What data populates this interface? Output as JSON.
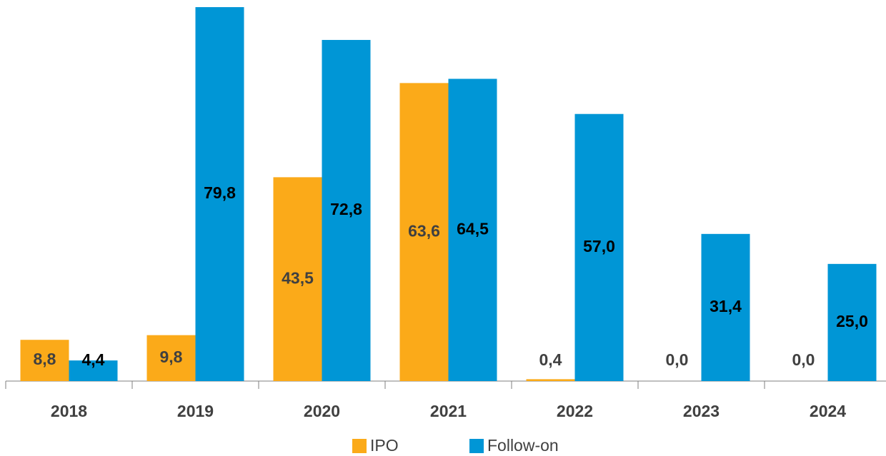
{
  "chart_data": {
    "type": "bar",
    "categories": [
      "2018",
      "2019",
      "2020",
      "2021",
      "2022",
      "2023",
      "2024"
    ],
    "series": [
      {
        "name": "IPO",
        "color": "#fbaa19",
        "values": [
          8.8,
          9.8,
          43.5,
          63.6,
          0.4,
          0.0,
          0.0
        ],
        "value_labels": [
          "8,8",
          "9,8",
          "43,5",
          "63,6",
          "0,4",
          "0,0",
          "0,0"
        ]
      },
      {
        "name": "Follow-on",
        "color": "#0096d6",
        "values": [
          4.4,
          79.8,
          72.8,
          64.5,
          57.0,
          31.4,
          25.0
        ],
        "value_labels": [
          "4,4",
          "79,8",
          "72,8",
          "64,5",
          "57,0",
          "31,4",
          "25,0"
        ]
      }
    ]
  }
}
